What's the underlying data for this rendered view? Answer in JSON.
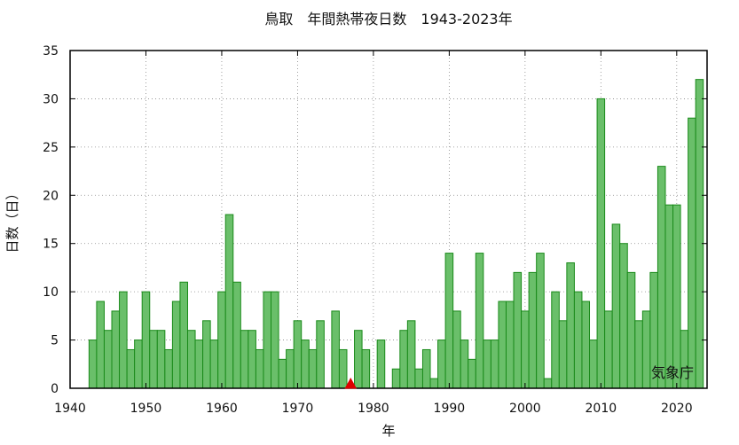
{
  "chart_data": {
    "type": "bar",
    "title": "鳥取　年間熱帯夜日数　1943-2023年",
    "xlabel": "年",
    "ylabel": "日数（日）",
    "credit": "気象庁",
    "xlim": [
      1940,
      2024
    ],
    "ylim": [
      0,
      35
    ],
    "xticks": [
      1940,
      1950,
      1960,
      1970,
      1980,
      1990,
      2000,
      2010,
      2020
    ],
    "yticks": [
      0,
      5,
      10,
      15,
      20,
      25,
      30,
      35
    ],
    "grid": true,
    "bar_color": "#6abf6a",
    "bar_edge_color": "#1a8a1a",
    "marker": {
      "shape": "triangle",
      "x": 1977,
      "color": "#dd0000"
    },
    "x": [
      1943,
      1944,
      1945,
      1946,
      1947,
      1948,
      1949,
      1950,
      1951,
      1952,
      1953,
      1954,
      1955,
      1956,
      1957,
      1958,
      1959,
      1960,
      1961,
      1962,
      1963,
      1964,
      1965,
      1966,
      1967,
      1968,
      1969,
      1970,
      1971,
      1972,
      1973,
      1974,
      1975,
      1976,
      1977,
      1978,
      1979,
      1980,
      1981,
      1982,
      1983,
      1984,
      1985,
      1986,
      1987,
      1988,
      1989,
      1990,
      1991,
      1992,
      1993,
      1994,
      1995,
      1996,
      1997,
      1998,
      1999,
      2000,
      2001,
      2002,
      2003,
      2004,
      2005,
      2006,
      2007,
      2008,
      2009,
      2010,
      2011,
      2012,
      2013,
      2014,
      2015,
      2016,
      2017,
      2018,
      2019,
      2020,
      2021,
      2022,
      2023
    ],
    "values": [
      5,
      9,
      6,
      8,
      10,
      4,
      5,
      10,
      6,
      6,
      4,
      9,
      11,
      6,
      5,
      7,
      5,
      10,
      18,
      11,
      6,
      6,
      4,
      10,
      10,
      3,
      4,
      7,
      5,
      4,
      7,
      0,
      8,
      4,
      null,
      6,
      4,
      0,
      5,
      0,
      2,
      6,
      7,
      2,
      4,
      1,
      5,
      14,
      8,
      5,
      3,
      14,
      5,
      5,
      9,
      9,
      12,
      8,
      12,
      14,
      1,
      10,
      7,
      13,
      10,
      9,
      5,
      30,
      8,
      17,
      15,
      12,
      7,
      8,
      12,
      23,
      19,
      19,
      6,
      28,
      32
    ]
  }
}
